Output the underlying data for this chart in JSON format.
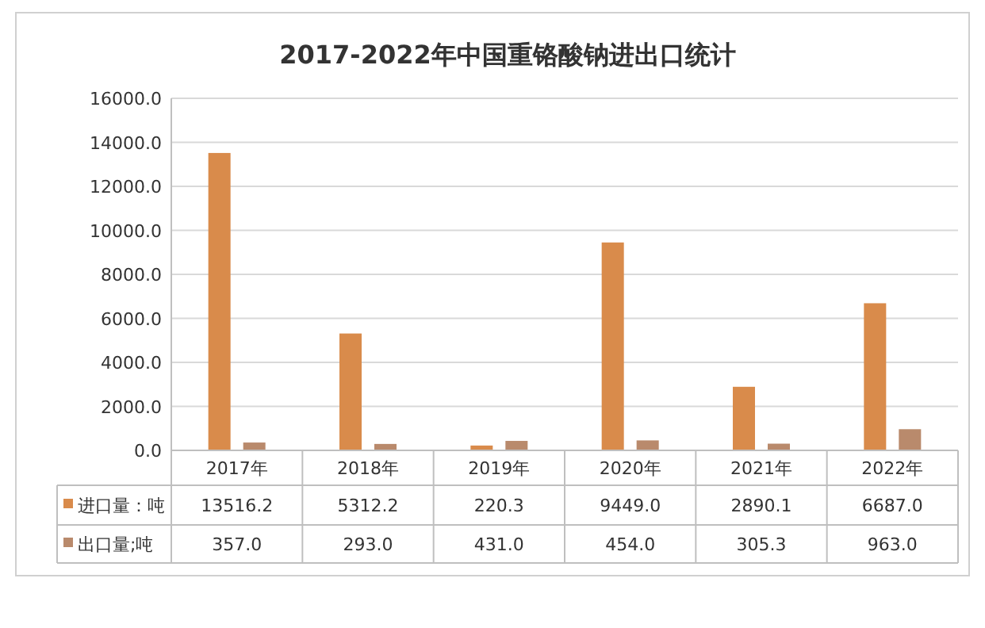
{
  "chart_data": {
    "type": "bar",
    "title": "2017-2022年中国重铬酸钠进出口统计",
    "categories": [
      "2017年",
      "2018年",
      "2019年",
      "2020年",
      "2021年",
      "2022年"
    ],
    "series": [
      {
        "name": "进口量：吨",
        "color": "#d98b4b",
        "values": [
          13516.2,
          5312.2,
          220.3,
          9449.0,
          2890.1,
          6687.0
        ],
        "value_labels": [
          "13516.2",
          "5312.2",
          "220.3",
          "9449.0",
          "2890.1",
          "6687.0"
        ]
      },
      {
        "name": "出口量;吨",
        "color": "#b98a6c",
        "values": [
          357.0,
          293.0,
          431.0,
          454.0,
          305.3,
          963.0
        ],
        "value_labels": [
          "357.0",
          "293.0",
          "431.0",
          "454.0",
          "305.3",
          "963.0"
        ]
      }
    ],
    "ylim": [
      0,
      16000
    ],
    "yticks": [
      {
        "value": 0,
        "label": "0.0"
      },
      {
        "value": 2000,
        "label": "2000.0"
      },
      {
        "value": 4000,
        "label": "4000.0"
      },
      {
        "value": 6000,
        "label": "6000.0"
      },
      {
        "value": 8000,
        "label": "8000.0"
      },
      {
        "value": 10000,
        "label": "10000.0"
      },
      {
        "value": 12000,
        "label": "12000.0"
      },
      {
        "value": 14000,
        "label": "14000.0"
      },
      {
        "value": 16000,
        "label": "16000.0"
      }
    ],
    "grid": true,
    "legend": "bottom"
  }
}
